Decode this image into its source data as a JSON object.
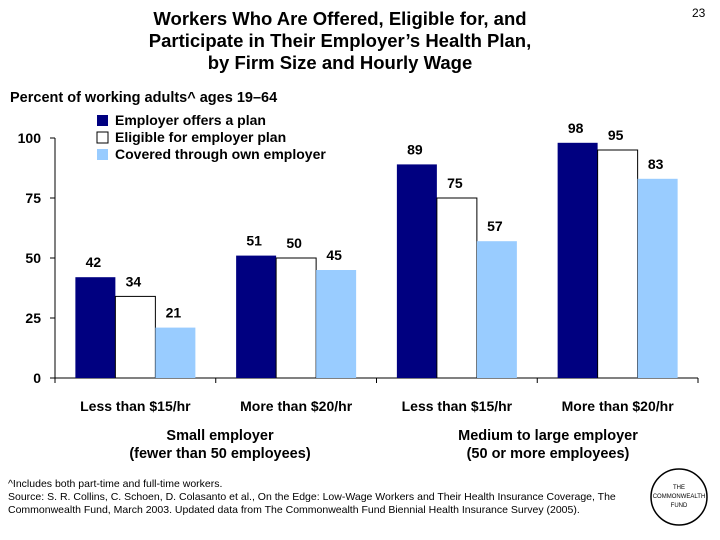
{
  "page_number": "23",
  "title_lines": [
    "Workers Who Are Offered, Eligible for, and",
    "Participate in Their Employer’s Health Plan,",
    "by Firm Size and Hourly Wage"
  ],
  "subtitle": "Percent of working adults^ ages 19–64",
  "chart_data": {
    "type": "bar",
    "title": "Workers Who Are Offered, Eligible for, and Participate in Their Employer’s Health Plan, by Firm Size and Hourly Wage",
    "ylabel": "Percent of working adults^ ages 19–64",
    "ylim": [
      0,
      100
    ],
    "yticks": [
      "0",
      "25",
      "50",
      "75",
      "100"
    ],
    "ytick_values": [
      0,
      25,
      50,
      75,
      100
    ],
    "categories": [
      "Less than $15/hr",
      "More than $20/hr",
      "Less than $15/hr",
      "More than $20/hr"
    ],
    "groups": [
      {
        "line1": "Small employer",
        "line2": "(fewer than 50 employees)"
      },
      {
        "line1": "Medium to large employer",
        "line2": "(50 or more employees)"
      }
    ],
    "series": [
      {
        "name": "Employer offers a plan",
        "color": "#000080",
        "values": [
          42,
          51,
          89,
          98
        ]
      },
      {
        "name": "Eligible for employer plan",
        "color": "#ffffff",
        "values": [
          34,
          50,
          75,
          95
        ]
      },
      {
        "name": "Covered through own employer",
        "color": "#99ccff",
        "values": [
          21,
          45,
          57,
          83
        ]
      }
    ],
    "legend_position": "top-left"
  },
  "footnote_lines": [
    "^Includes both part-time and full-time workers.",
    "Source: S. R. Collins, C. Schoen, D. Colasanto et al., On the Edge: Low-Wage Workers and Their Health Insurance Coverage, The Commonwealth Fund, March 2003. Updated data from The Commonwealth Fund Biennial Health Insurance Survey (2005)."
  ],
  "logo_lines": [
    "THE",
    "COMMONWEALTH",
    "FUND"
  ]
}
